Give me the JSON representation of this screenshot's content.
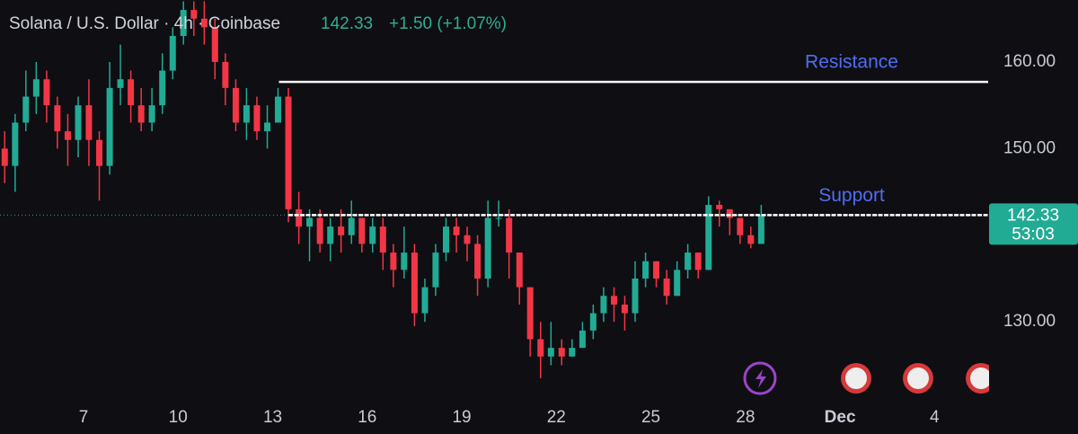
{
  "chart_data": {
    "type": "candlestick",
    "title": "Solana / U.S. Dollar · 4h · Coinbase",
    "last_price": 142.33,
    "change_label": "+1.50 (+1.07%)",
    "countdown": "53:03",
    "up_color": "#22ab94",
    "down_color": "#f23645",
    "x": [
      4.5,
      4.83,
      5.17,
      5.5,
      5.83,
      6.17,
      6.5,
      6.83,
      7.17,
      7.5,
      7.83,
      8.17,
      8.5,
      8.83,
      9.17,
      9.5,
      9.83,
      10.17,
      10.5,
      10.83,
      11.17,
      11.5,
      11.83,
      12.17,
      12.5,
      12.83,
      13.17,
      13.5,
      13.83,
      14.17,
      14.5,
      14.83,
      15.17,
      15.5,
      15.83,
      16.17,
      16.5,
      16.83,
      17.17,
      17.5,
      17.83,
      18.17,
      18.5,
      18.83,
      19.17,
      19.5,
      19.83,
      20.17,
      20.5,
      20.83,
      21.17,
      21.5,
      21.83,
      22.17,
      22.5,
      22.83,
      23.17,
      23.5,
      23.83,
      24.17,
      24.5,
      24.83,
      25.17,
      25.5,
      25.83,
      26.17,
      26.5,
      26.83,
      27.17,
      27.5,
      27.83,
      28.17,
      28.5
    ],
    "open": [
      150,
      148,
      153,
      156,
      158,
      155,
      152,
      151,
      155,
      151,
      148,
      157,
      158,
      155,
      153,
      155,
      159,
      163,
      166,
      165,
      164,
      160,
      157,
      153,
      155,
      152,
      153,
      156,
      143,
      141,
      142,
      139,
      141,
      140,
      142,
      139,
      141,
      138,
      136,
      138,
      131,
      134,
      138,
      141,
      140,
      139,
      135,
      142,
      142,
      138,
      134,
      128,
      126,
      127,
      126,
      127,
      129,
      131,
      133,
      132,
      131,
      135,
      137,
      135,
      133,
      136,
      138,
      136,
      143.5,
      143,
      142,
      140,
      139
    ],
    "high": [
      152,
      154,
      159,
      160,
      159,
      156,
      154,
      156,
      158,
      152,
      160,
      162,
      159,
      157,
      157,
      161,
      164,
      167,
      167,
      167,
      165,
      161,
      158,
      157,
      156,
      155,
      157,
      157,
      145,
      143,
      143,
      142,
      143,
      144,
      142,
      142,
      142,
      139,
      141,
      139,
      135,
      139,
      142,
      142,
      141,
      140,
      144,
      144,
      143,
      138,
      134,
      130,
      130,
      128,
      128,
      130,
      132,
      134,
      134,
      133,
      137,
      138,
      137,
      136,
      137,
      139,
      138,
      144.5,
      144,
      143,
      142,
      141,
      143.5
    ],
    "low": [
      146,
      145,
      152,
      154,
      153,
      150,
      148,
      149,
      148,
      144,
      147,
      155,
      153,
      152,
      152,
      154,
      158,
      162,
      163,
      162,
      158,
      155,
      152,
      151,
      151,
      150,
      153,
      141.5,
      139,
      137,
      138,
      137,
      138,
      139,
      138,
      138,
      136,
      134,
      135,
      129.5,
      130,
      133,
      137,
      138,
      137,
      133,
      134,
      141,
      135,
      132,
      126,
      123.5,
      125,
      125,
      126,
      127,
      128,
      130,
      130,
      129,
      130,
      134,
      134,
      132,
      133,
      135,
      135,
      136,
      141,
      140,
      139,
      138.5,
      139
    ],
    "close": [
      148,
      153,
      156,
      158,
      155,
      152,
      151,
      155,
      151,
      148,
      157,
      158,
      155,
      153,
      155,
      159,
      163,
      166,
      165,
      164,
      160,
      157,
      153,
      155,
      152,
      153,
      156,
      143,
      141,
      142,
      139,
      141,
      140,
      142,
      139,
      141,
      138,
      136,
      138,
      131,
      134,
      138,
      141,
      140,
      139,
      135,
      142,
      142,
      138,
      134,
      128,
      126,
      127,
      126,
      127,
      129,
      131,
      133,
      132,
      131,
      135,
      137,
      135,
      133,
      136,
      138,
      136,
      143.5,
      143,
      142,
      140,
      139,
      142.33
    ],
    "levels": [
      {
        "label": "Resistance",
        "value": 157.7,
        "start": 13.2
      },
      {
        "label": "Support",
        "value": 142.33,
        "start": 13.5
      }
    ],
    "xlim": [
      4.35,
      35.7
    ],
    "ylim": [
      121.0,
      167.15
    ],
    "xticks": [
      7,
      10,
      13,
      16,
      19,
      22,
      25,
      28,
      {
        "value": 31,
        "label": "Dec"
      },
      {
        "value": 34,
        "label": "4"
      }
    ],
    "yticks": [
      {
        "value": 130,
        "label": "130.00"
      },
      {
        "value": 150,
        "label": "150.00"
      },
      {
        "value": 160,
        "label": "160.00"
      }
    ],
    "grid": false
  }
}
